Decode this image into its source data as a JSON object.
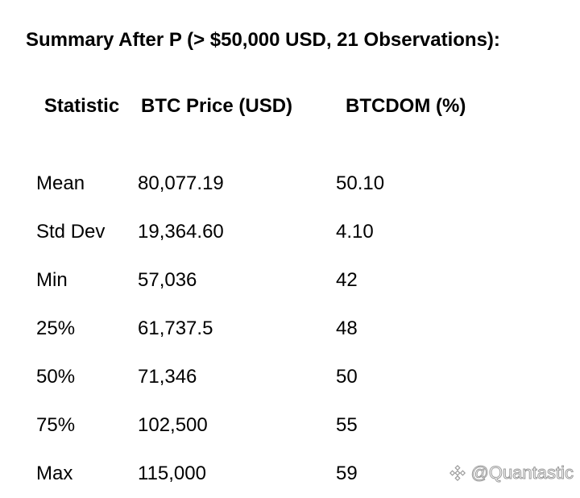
{
  "title": "Summary After P (> $50,000 USD, 21 Observations):",
  "table": {
    "headers": {
      "statistic": "Statistic",
      "btc_price": "BTC Price (USD)",
      "btcdom": "BTCDOM (%)"
    },
    "rows": [
      {
        "statistic": "Mean",
        "btc_price": "80,077.19",
        "btcdom": "50.10"
      },
      {
        "statistic": "Std Dev",
        "btc_price": "19,364.60",
        "btcdom": "4.10"
      },
      {
        "statistic": "Min",
        "btc_price": "57,036",
        "btcdom": "42"
      },
      {
        "statistic": "25%",
        "btc_price": "61,737.5",
        "btcdom": "48"
      },
      {
        "statistic": "50%",
        "btc_price": "71,346",
        "btcdom": "50"
      },
      {
        "statistic": "75%",
        "btc_price": "102,500",
        "btcdom": "55"
      },
      {
        "statistic": "Max",
        "btc_price": "115,000",
        "btcdom": "59"
      }
    ]
  },
  "watermark": {
    "text": "@Quantastic",
    "icon": "binance-logo-icon"
  }
}
